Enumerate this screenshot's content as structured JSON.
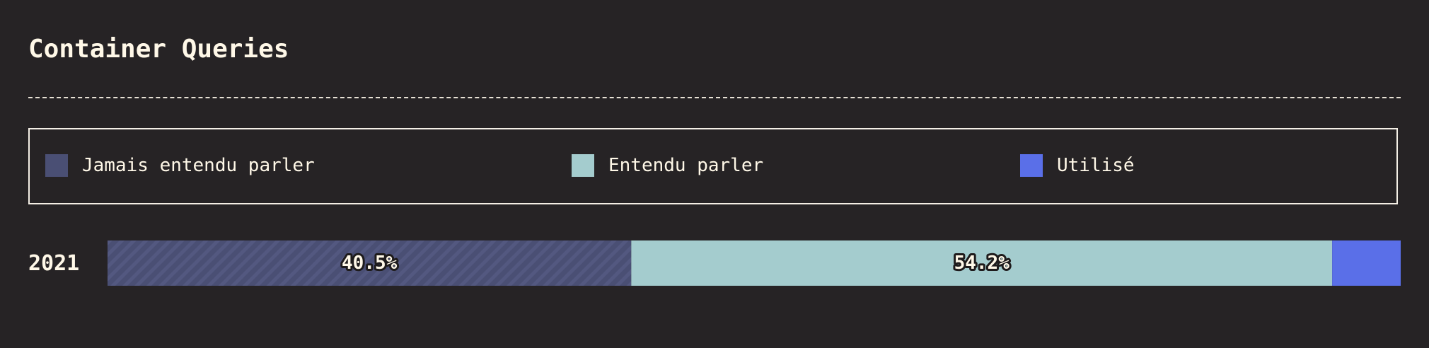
{
  "title": "Container Queries",
  "legend": [
    {
      "label": "Jamais entendu parler",
      "color": "#4a4f74"
    },
    {
      "label": "Entendu parler",
      "color": "#a4ccce"
    },
    {
      "label": "Utilisé",
      "color": "#5a6fe8"
    }
  ],
  "chart_data": {
    "type": "bar",
    "orientation": "horizontal",
    "stacked": true,
    "title": "Container Queries",
    "categories": [
      "2021"
    ],
    "series": [
      {
        "name": "Jamais entendu parler",
        "values": [
          40.5
        ],
        "color": "#4a4f74",
        "label": "40.5%",
        "pattern": "diagonal-stripes"
      },
      {
        "name": "Entendu parler",
        "values": [
          54.2
        ],
        "color": "#a4ccce",
        "label": "54.2%"
      },
      {
        "name": "Utilisé",
        "values": [
          5.3
        ],
        "color": "#5a6fe8",
        "label": ""
      }
    ],
    "xlim": [
      0,
      100
    ],
    "unit": "%",
    "legend_position": "top"
  }
}
